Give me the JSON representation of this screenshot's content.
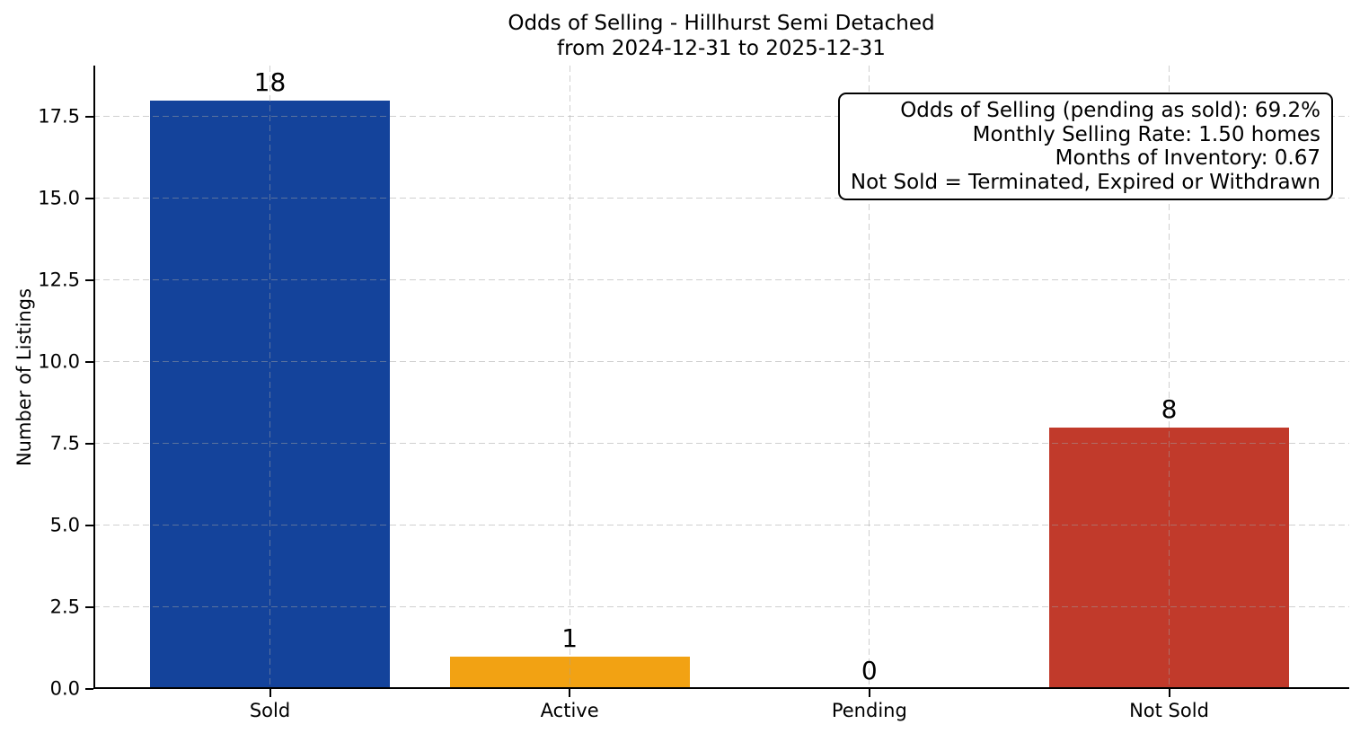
{
  "chart_data": {
    "type": "bar",
    "title": "Odds of Selling - Hillhurst Semi Detached",
    "subtitle": "from 2024-12-31 to 2025-12-31",
    "ylabel": "Number of Listings",
    "categories": [
      "Sold",
      "Active",
      "Pending",
      "Not Sold"
    ],
    "values": [
      18,
      1,
      0,
      8
    ],
    "value_labels": [
      "18",
      "1",
      "0",
      "8"
    ],
    "bar_colors": [
      "#14439b",
      "#f2a213",
      null,
      "#c13a2b"
    ],
    "ylim": [
      0,
      19.06
    ],
    "yticks": [
      "0.0",
      "2.5",
      "5.0",
      "7.5",
      "10.0",
      "12.5",
      "15.0",
      "17.5"
    ],
    "grid": true,
    "grid_color_rgba": "rgba(160,160,160,0.5)",
    "legend_position": "none",
    "annotation": {
      "lines": [
        "Odds of Selling (pending as sold): 69.2%",
        "Monthly Selling Rate: 1.50 homes",
        "Months of Inventory: 0.67",
        "Not Sold = Terminated, Expired or Withdrawn"
      ]
    }
  }
}
